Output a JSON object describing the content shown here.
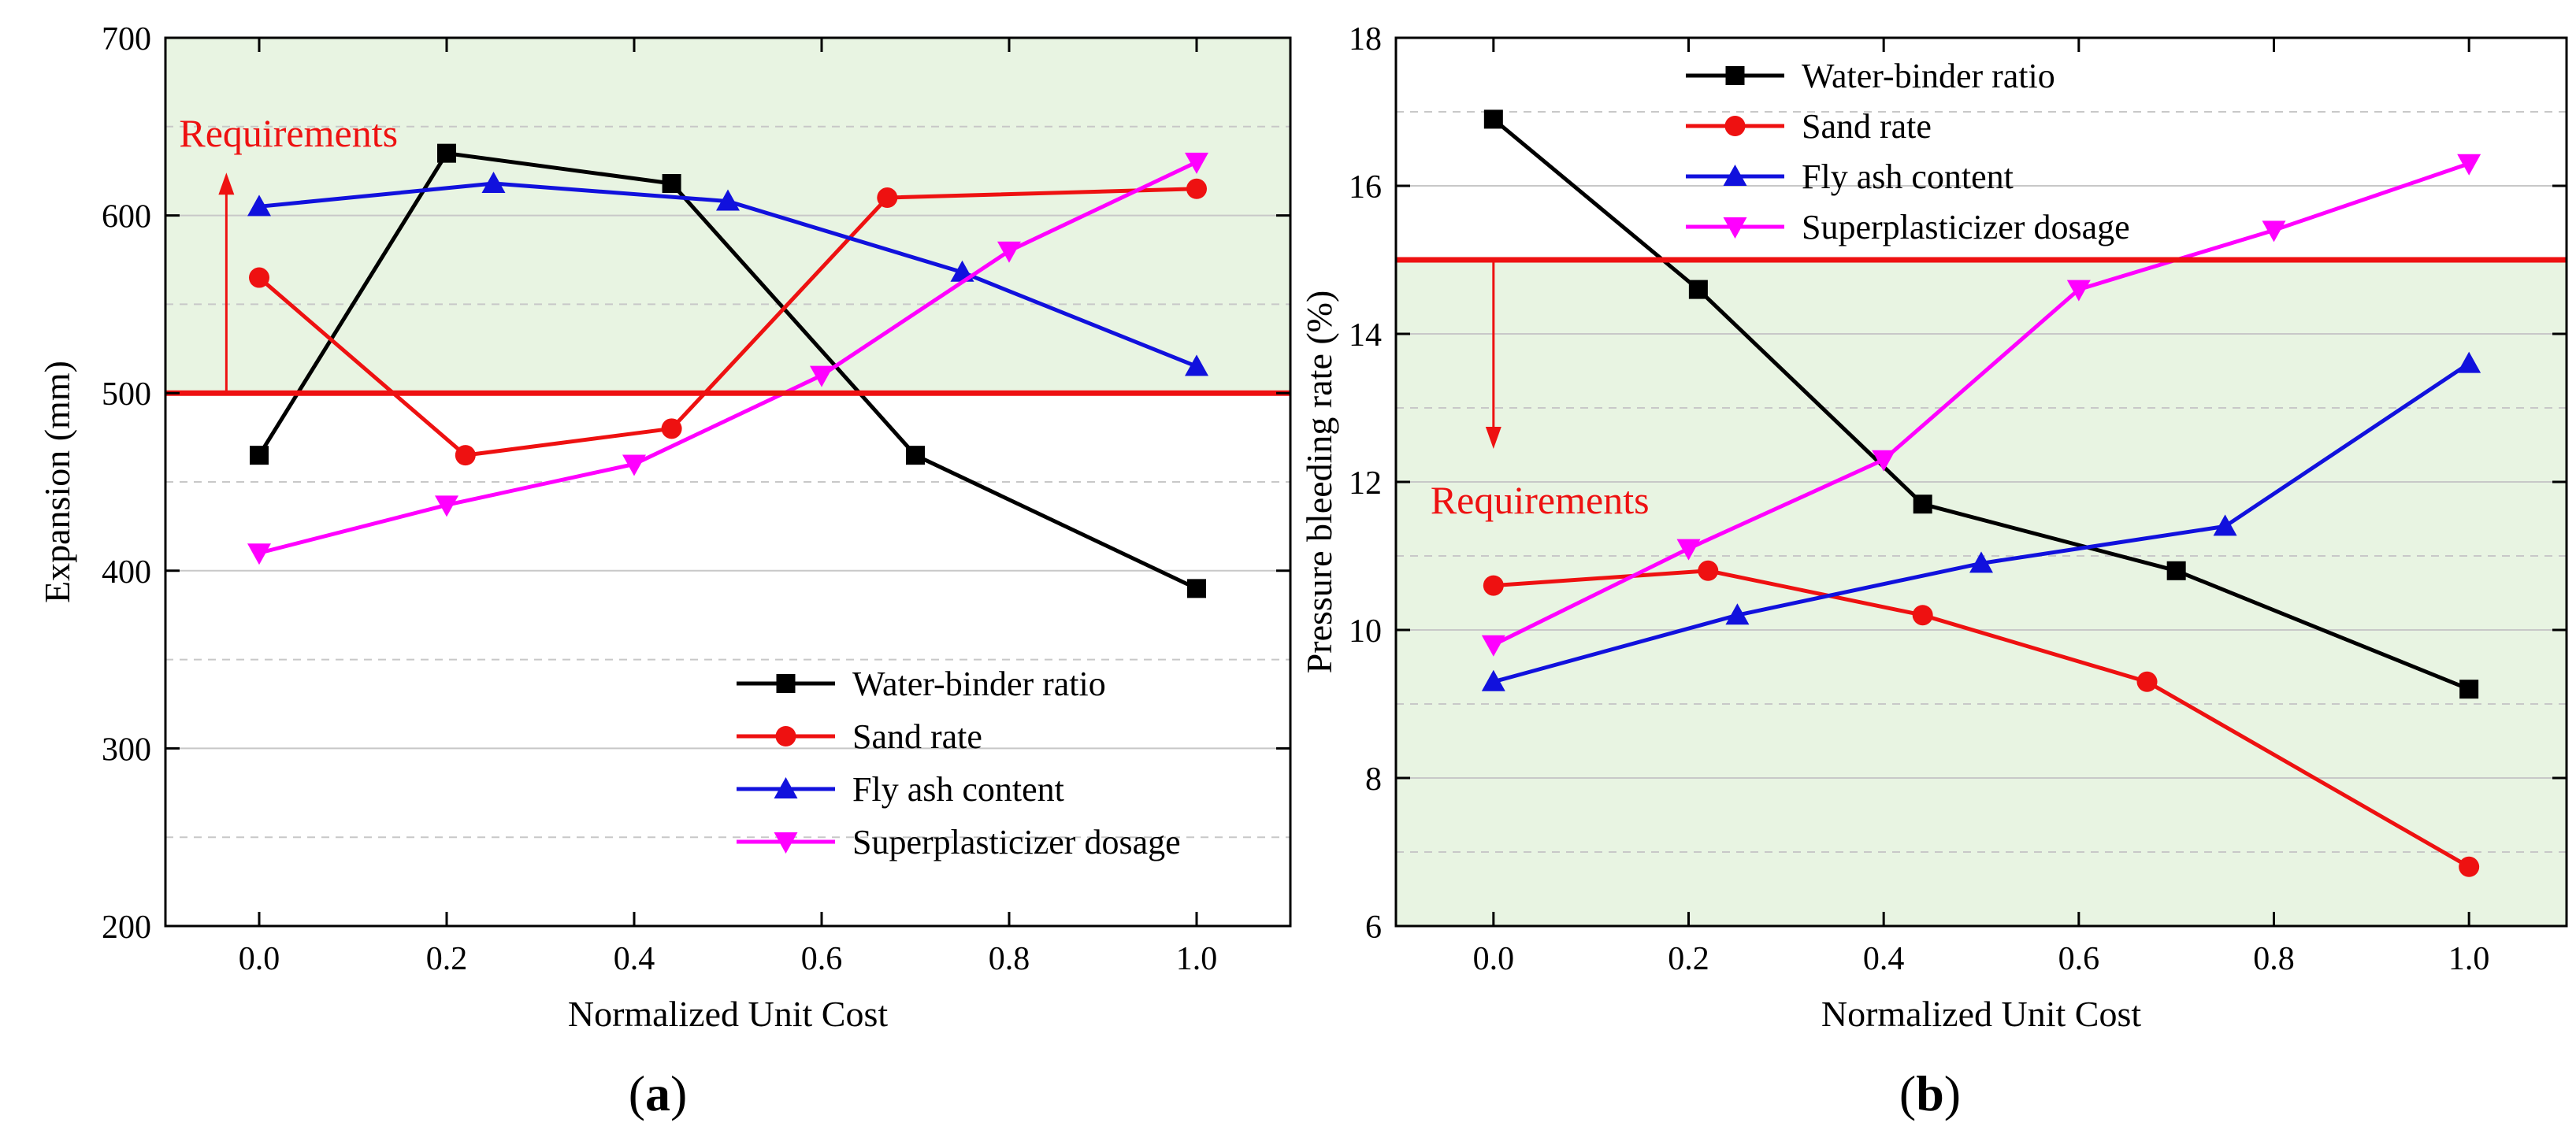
{
  "panels": [
    {
      "id": "a",
      "panel_label": "a",
      "colors": {
        "background": "#e8f4e2",
        "requirement": "#ee1111",
        "series": [
          "#000000",
          "#ee1111",
          "#1111dd",
          "#ff00ff"
        ]
      },
      "chart_data": {
        "type": "line",
        "xlabel": "Normalized Unit Cost",
        "ylabel": "Expansion (mm)",
        "xlim": [
          -0.1,
          1.1
        ],
        "ylim": [
          200,
          700
        ],
        "xticks": [
          "0.0",
          "0.2",
          "0.4",
          "0.6",
          "0.8",
          "1.0"
        ],
        "xtick_values": [
          0,
          0.2,
          0.4,
          0.6,
          0.8,
          1.0
        ],
        "yticks": [
          "200",
          "300",
          "400",
          "500",
          "600",
          "700"
        ],
        "ytick_values": [
          200,
          300,
          400,
          500,
          600,
          700
        ],
        "minor_grid": [
          250,
          350,
          450,
          550,
          650
        ],
        "green_region": [
          500,
          700
        ],
        "requirement": {
          "value": 500,
          "label": "Requirements",
          "direction": "up",
          "arrow_x": -0.035
        },
        "legend_position": "bottom-right",
        "series": [
          {
            "name": "Water-binder ratio",
            "marker": "square",
            "x": [
              0,
              0.2,
              0.44,
              0.7,
              1.0
            ],
            "y": [
              465,
              635,
              618,
              465,
              390
            ]
          },
          {
            "name": "Sand rate",
            "marker": "circle",
            "x": [
              0,
              0.22,
              0.44,
              0.67,
              1.0
            ],
            "y": [
              565,
              465,
              480,
              610,
              615
            ]
          },
          {
            "name": "Fly ash content",
            "marker": "triangle-up",
            "x": [
              0,
              0.25,
              0.5,
              0.75,
              1.0
            ],
            "y": [
              605,
              618,
              608,
              568,
              515
            ]
          },
          {
            "name": "Superplasticizer dosage",
            "marker": "triangle-down",
            "x": [
              0,
              0.2,
              0.4,
              0.6,
              0.8,
              1.0
            ],
            "y": [
              410,
              437,
              460,
              510,
              580,
              630
            ]
          }
        ]
      }
    },
    {
      "id": "b",
      "panel_label": "b",
      "colors": {
        "background": "#e8f4e2",
        "requirement": "#ee1111",
        "series": [
          "#000000",
          "#ee1111",
          "#1111dd",
          "#ff00ff"
        ]
      },
      "chart_data": {
        "type": "line",
        "xlabel": "Normalized Unit Cost",
        "ylabel": "Pressure bleeding rate (%)",
        "xlim": [
          -0.1,
          1.1
        ],
        "ylim": [
          6,
          18
        ],
        "xticks": [
          "0.0",
          "0.2",
          "0.4",
          "0.6",
          "0.8",
          "1.0"
        ],
        "xtick_values": [
          0,
          0.2,
          0.4,
          0.6,
          0.8,
          1.0
        ],
        "yticks": [
          "6",
          "8",
          "10",
          "12",
          "14",
          "16",
          "18"
        ],
        "ytick_values": [
          6,
          8,
          10,
          12,
          14,
          16,
          18
        ],
        "minor_grid": [
          7,
          9,
          11,
          13,
          15,
          17
        ],
        "green_region": [
          6,
          15
        ],
        "requirement": {
          "value": 15,
          "label": "Requirements",
          "direction": "down",
          "arrow_x": 0.0
        },
        "legend_position": "top-left",
        "series": [
          {
            "name": "Water-binder ratio",
            "marker": "square",
            "x": [
              0,
              0.21,
              0.44,
              0.7,
              1.0
            ],
            "y": [
              16.9,
              14.6,
              11.7,
              10.8,
              9.2
            ]
          },
          {
            "name": "Sand rate",
            "marker": "circle",
            "x": [
              0,
              0.22,
              0.44,
              0.67,
              1.0
            ],
            "y": [
              10.6,
              10.8,
              10.2,
              9.3,
              6.8
            ]
          },
          {
            "name": "Fly ash content",
            "marker": "triangle-up",
            "x": [
              0,
              0.25,
              0.5,
              0.75,
              1.0
            ],
            "y": [
              9.3,
              10.2,
              10.9,
              11.4,
              13.6
            ]
          },
          {
            "name": "Superplasticizer dosage",
            "marker": "triangle-down",
            "x": [
              0,
              0.2,
              0.4,
              0.6,
              0.8,
              1.0
            ],
            "y": [
              9.8,
              11.1,
              12.3,
              14.6,
              15.4,
              16.3
            ]
          }
        ]
      }
    }
  ]
}
